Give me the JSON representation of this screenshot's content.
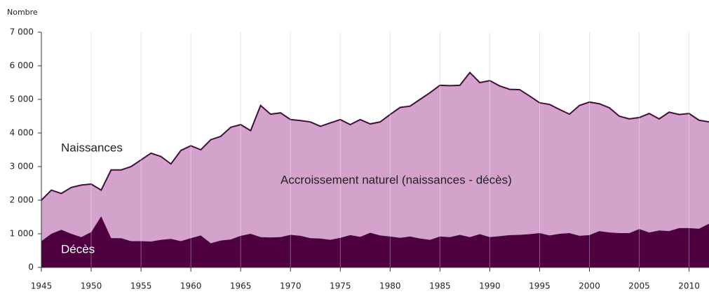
{
  "chart_data": {
    "type": "area",
    "y_label": "Nombre",
    "annotations": [
      "Accroissement naturel (naissances - décès)"
    ],
    "x": [
      1945,
      1946,
      1947,
      1948,
      1949,
      1950,
      1951,
      1952,
      1953,
      1954,
      1955,
      1956,
      1957,
      1958,
      1959,
      1960,
      1961,
      1962,
      1963,
      1964,
      1965,
      1966,
      1967,
      1968,
      1969,
      1970,
      1971,
      1972,
      1973,
      1974,
      1975,
      1976,
      1977,
      1978,
      1979,
      1980,
      1981,
      1982,
      1983,
      1984,
      1985,
      1986,
      1987,
      1988,
      1989,
      1990,
      1991,
      1992,
      1993,
      1994,
      1995,
      1996,
      1997,
      1998,
      1999,
      2000,
      2001,
      2002,
      2003,
      2004,
      2005,
      2006,
      2007,
      2008,
      2009,
      2010,
      2011,
      2012
    ],
    "series": [
      {
        "name": "Naissances",
        "color": "#4a0a3e",
        "fill": "#d4a3cb",
        "values": [
          2000,
          2300,
          2200,
          2380,
          2450,
          2480,
          2300,
          2900,
          2900,
          3000,
          3200,
          3400,
          3300,
          3080,
          3480,
          3620,
          3500,
          3800,
          3900,
          4170,
          4250,
          4070,
          4820,
          4560,
          4600,
          4400,
          4370,
          4330,
          4200,
          4300,
          4400,
          4250,
          4400,
          4270,
          4330,
          4550,
          4760,
          4800,
          5000,
          5200,
          5420,
          5410,
          5420,
          5800,
          5500,
          5560,
          5400,
          5300,
          5290,
          5100,
          4900,
          4850,
          4700,
          4560,
          4820,
          4920,
          4870,
          4750,
          4500,
          4420,
          4460,
          4580,
          4420,
          4620,
          4550,
          4580,
          4380,
          4330
        ]
      },
      {
        "name": "Décès",
        "color": "#4f0040",
        "values": [
          780,
          1000,
          1120,
          1000,
          900,
          1050,
          1520,
          870,
          870,
          780,
          780,
          770,
          820,
          850,
          780,
          870,
          950,
          720,
          800,
          830,
          940,
          1000,
          900,
          890,
          900,
          970,
          940,
          870,
          860,
          820,
          880,
          960,
          910,
          1030,
          950,
          920,
          880,
          920,
          860,
          820,
          920,
          900,
          970,
          900,
          990,
          900,
          930,
          960,
          970,
          990,
          1020,
          950,
          1000,
          1020,
          940,
          960,
          1080,
          1040,
          1020,
          1020,
          1140,
          1040,
          1100,
          1080,
          1170,
          1170,
          1150,
          1300
        ]
      }
    ],
    "xlim": [
      1945,
      2012
    ],
    "xticks": [
      1945,
      1950,
      1955,
      1960,
      1965,
      1970,
      1975,
      1980,
      1985,
      1990,
      1995,
      2000,
      2005,
      2010
    ],
    "ylim": [
      0,
      7000
    ],
    "yticks": [
      0,
      {
        "value": 1000,
        "label": "1 000"
      },
      {
        "value": 2000,
        "label": "2 000"
      },
      {
        "value": 3000,
        "label": "3 000"
      },
      {
        "value": 4000,
        "label": "4 000"
      },
      {
        "value": 5000,
        "label": "5 000"
      },
      {
        "value": 6000,
        "label": "6 000"
      },
      {
        "value": 7000,
        "label": "7 000"
      }
    ],
    "grid": true
  }
}
